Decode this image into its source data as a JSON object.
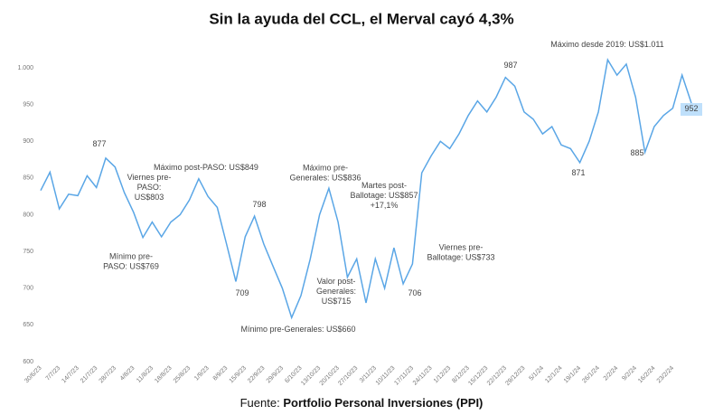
{
  "chart_data": {
    "type": "line",
    "title": "Sin la ayuda del CCL, el Merval cayó 4,3%",
    "source_label": "Fuente:",
    "source": "Portfolio Personal Inversiones (PPI)",
    "categories": [
      "30/6/23",
      null,
      "7/7/23",
      null,
      "14/7/23",
      null,
      "21/7/23",
      null,
      "28/7/23",
      null,
      "4/8/23",
      null,
      "11/8/23",
      null,
      "18/8/23",
      null,
      "25/8/23",
      null,
      "1/9/23",
      null,
      "8/9/23",
      null,
      "15/9/23",
      null,
      "22/9/23",
      null,
      "29/9/23",
      null,
      "6/10/23",
      null,
      "13/10/23",
      null,
      "20/10/23",
      null,
      "27/10/23",
      null,
      "3/11/23",
      null,
      "10/11/23",
      null,
      "17/11/23",
      null,
      "24/11/23",
      null,
      "1/12/23",
      null,
      "8/12/23",
      null,
      "15/12/23",
      null,
      "22/12/23",
      null,
      "29/12/23",
      null,
      "5/1/24",
      null,
      "12/1/24",
      null,
      "19/1/24",
      null,
      "26/1/24",
      null,
      "2/2/24",
      null,
      "9/2/24",
      null,
      "16/2/24",
      null,
      "23/2/24",
      null,
      null
    ],
    "series": [
      {
        "name": "Merval",
        "color": "#5aa6e6",
        "values": [
          833,
          858,
          808,
          828,
          826,
          853,
          837,
          877,
          865,
          830,
          803,
          769,
          790,
          770,
          790,
          800,
          820,
          849,
          825,
          810,
          760,
          709,
          770,
          798,
          760,
          730,
          700,
          660,
          690,
          740,
          800,
          836,
          790,
          715,
          740,
          680,
          740,
          700,
          755,
          706,
          733,
          857,
          880,
          900,
          890,
          910,
          935,
          955,
          940,
          960,
          987,
          975,
          940,
          930,
          910,
          920,
          895,
          890,
          871,
          900,
          940,
          1011,
          990,
          1005,
          960,
          885,
          920,
          935,
          945,
          990,
          952
        ]
      }
    ],
    "ylim": [
      600,
      1000
    ],
    "yticks": [
      600,
      650,
      700,
      750,
      800,
      850,
      900,
      950,
      {
        "value": 1000,
        "label": "1.000"
      }
    ],
    "annotations": [
      "877",
      "Viernes pre-\nPASO:\nUS$803",
      "Mínimo pre-\nPASO: US$769",
      "Máximo post-PASO: US$849",
      "798",
      "709",
      "Mínimo pre-Generales: US$660",
      "Máximo pre-\nGenerales: US$836",
      "Valor post-\nGenerales:\nUS$715",
      "Martes post-\nBallotage: US$857\n+17,1%",
      "706",
      "Viernes pre-\nBallotage: US$733",
      "987",
      "Máximo desde 2019: US$1.011",
      "871",
      "885",
      "952"
    ]
  }
}
